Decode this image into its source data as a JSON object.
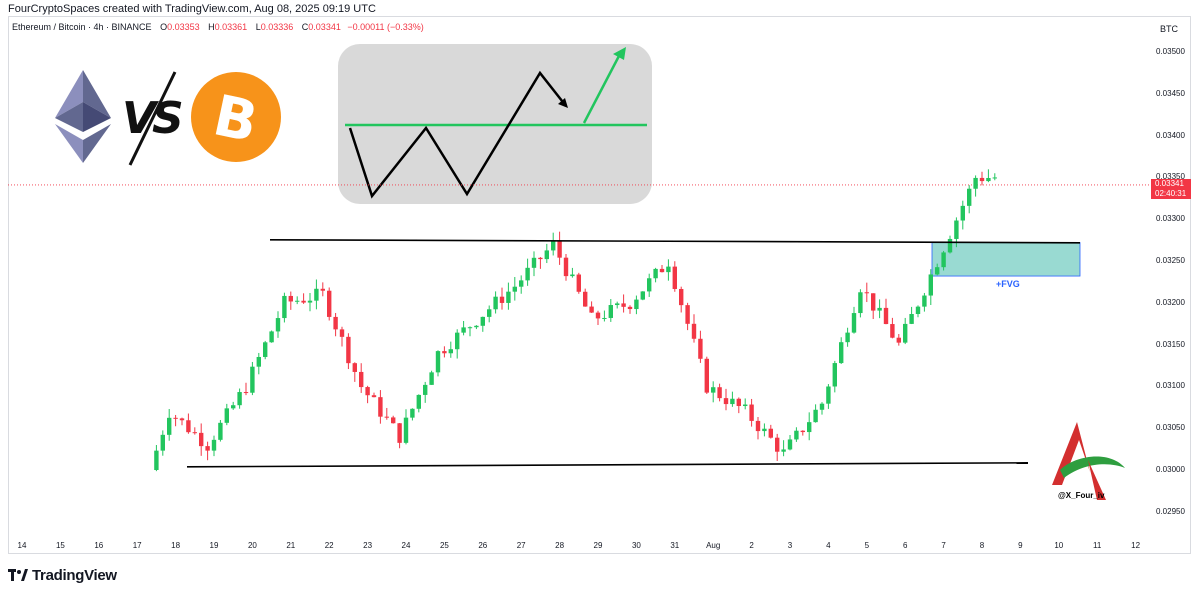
{
  "header": {
    "credit": "FourCryptoSpaces created with TradingView.com, Aug 08, 2025 09:19 UTC",
    "symbol": "Ethereum / Bitcoin · 4h · BINANCE",
    "ohlc": {
      "o_label": "O",
      "o": "0.03353",
      "h_label": "H",
      "h": "0.03361",
      "l_label": "L",
      "l": "0.03336",
      "c_label": "C",
      "c": "0.03341",
      "change": "−0.00011 (−0.33%)"
    }
  },
  "axis": {
    "currency": "BTC",
    "price_ticks": [
      "0.03500",
      "0.03450",
      "0.03400",
      "0.03350",
      "0.03300",
      "0.03250",
      "0.03200",
      "0.03150",
      "0.03100",
      "0.03050",
      "0.03000",
      "0.02950"
    ],
    "date_ticks": [
      "14",
      "15",
      "16",
      "17",
      "18",
      "19",
      "20",
      "21",
      "22",
      "23",
      "24",
      "25",
      "26",
      "27",
      "28",
      "29",
      "30",
      "31",
      "Aug",
      "2",
      "3",
      "4",
      "5",
      "6",
      "7",
      "8",
      "9",
      "10",
      "11",
      "12"
    ]
  },
  "price_badge": {
    "price": "0.03341",
    "countdown": "02:40:31",
    "color": "#f23645"
  },
  "annotations": {
    "fvg_label": "+FVG",
    "handle": "@X_Four_iv",
    "vs": "VS"
  },
  "colors": {
    "up": "#089981",
    "up_bright": "#22c55e",
    "down": "#f23645",
    "fvg": "#7fd1c7",
    "line": "#000000",
    "arrow": "#22c55e"
  },
  "icons": [
    "ethereum-logo-icon",
    "bitcoin-logo-icon",
    "tradingview-logo-icon",
    "author-logo-icon"
  ],
  "branding": {
    "logo_text": "TradingView"
  },
  "chart_data": {
    "type": "candlestick",
    "title": "Ethereum / Bitcoin · 4h · BINANCE",
    "ylim": [
      0.0292,
      0.0352
    ],
    "x_range": [
      "Jul 14",
      "Aug 12"
    ],
    "grid": false,
    "levels": [
      {
        "name": "resistance",
        "value": 0.03273
      },
      {
        "name": "support",
        "value": 0.03005
      }
    ],
    "fvg_zone": [
      0.03232,
      0.03272
    ],
    "last_price": 0.03341,
    "series": [
      {
        "name": "close",
        "x": [
          "Jul 17",
          "Jul 18",
          "Jul 19",
          "Jul 20",
          "Jul 21",
          "Jul 22",
          "Jul 23",
          "Jul 24",
          "Jul 25",
          "Jul 26",
          "Jul 27",
          "Jul 28",
          "Jul 29",
          "Jul 30",
          "Jul 31",
          "Aug 1",
          "Aug 2",
          "Aug 3",
          "Aug 4",
          "Aug 5",
          "Aug 6",
          "Aug 7",
          "Aug 8"
        ],
        "values": [
          0.0293,
          0.0307,
          0.0303,
          0.031,
          0.032,
          0.0321,
          0.031,
          0.0304,
          0.0314,
          0.0318,
          0.0322,
          0.0327,
          0.0318,
          0.032,
          0.0325,
          0.031,
          0.0307,
          0.0302,
          0.0308,
          0.0322,
          0.0315,
          0.0325,
          0.0335
        ]
      }
    ]
  }
}
